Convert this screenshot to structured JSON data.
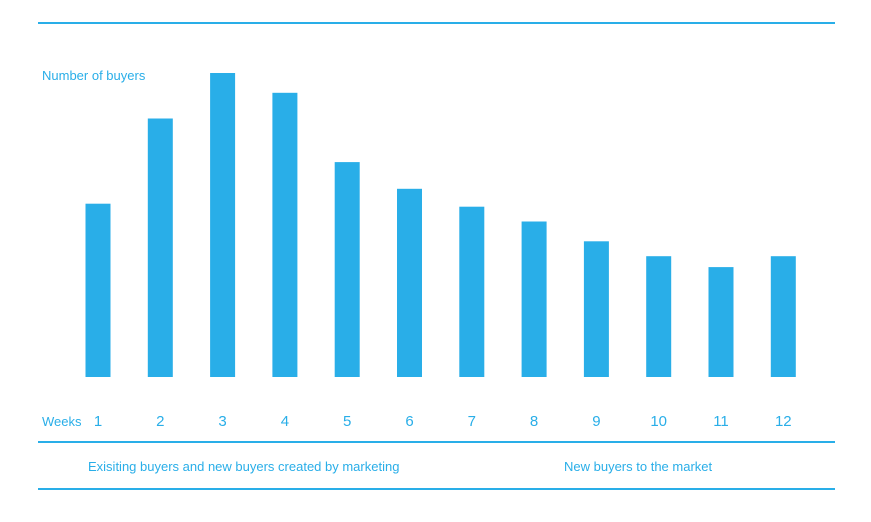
{
  "colors": {
    "accent": "#29aee8",
    "background": "#ffffff"
  },
  "chart_data": {
    "type": "bar",
    "ylabel": "Number of buyers",
    "xlabel": "Weeks",
    "categories": [
      "1",
      "2",
      "3",
      "4",
      "5",
      "6",
      "7",
      "8",
      "9",
      "10",
      "11",
      "12"
    ],
    "values": [
      175,
      261,
      307,
      287,
      217,
      190,
      172,
      157,
      137,
      122,
      111,
      122
    ],
    "ylim": [
      0,
      310
    ],
    "grid": false,
    "legend": "none"
  },
  "footer": {
    "left_label": "Exisiting buyers and new buyers created by marketing",
    "right_label": "New buyers to the market"
  }
}
